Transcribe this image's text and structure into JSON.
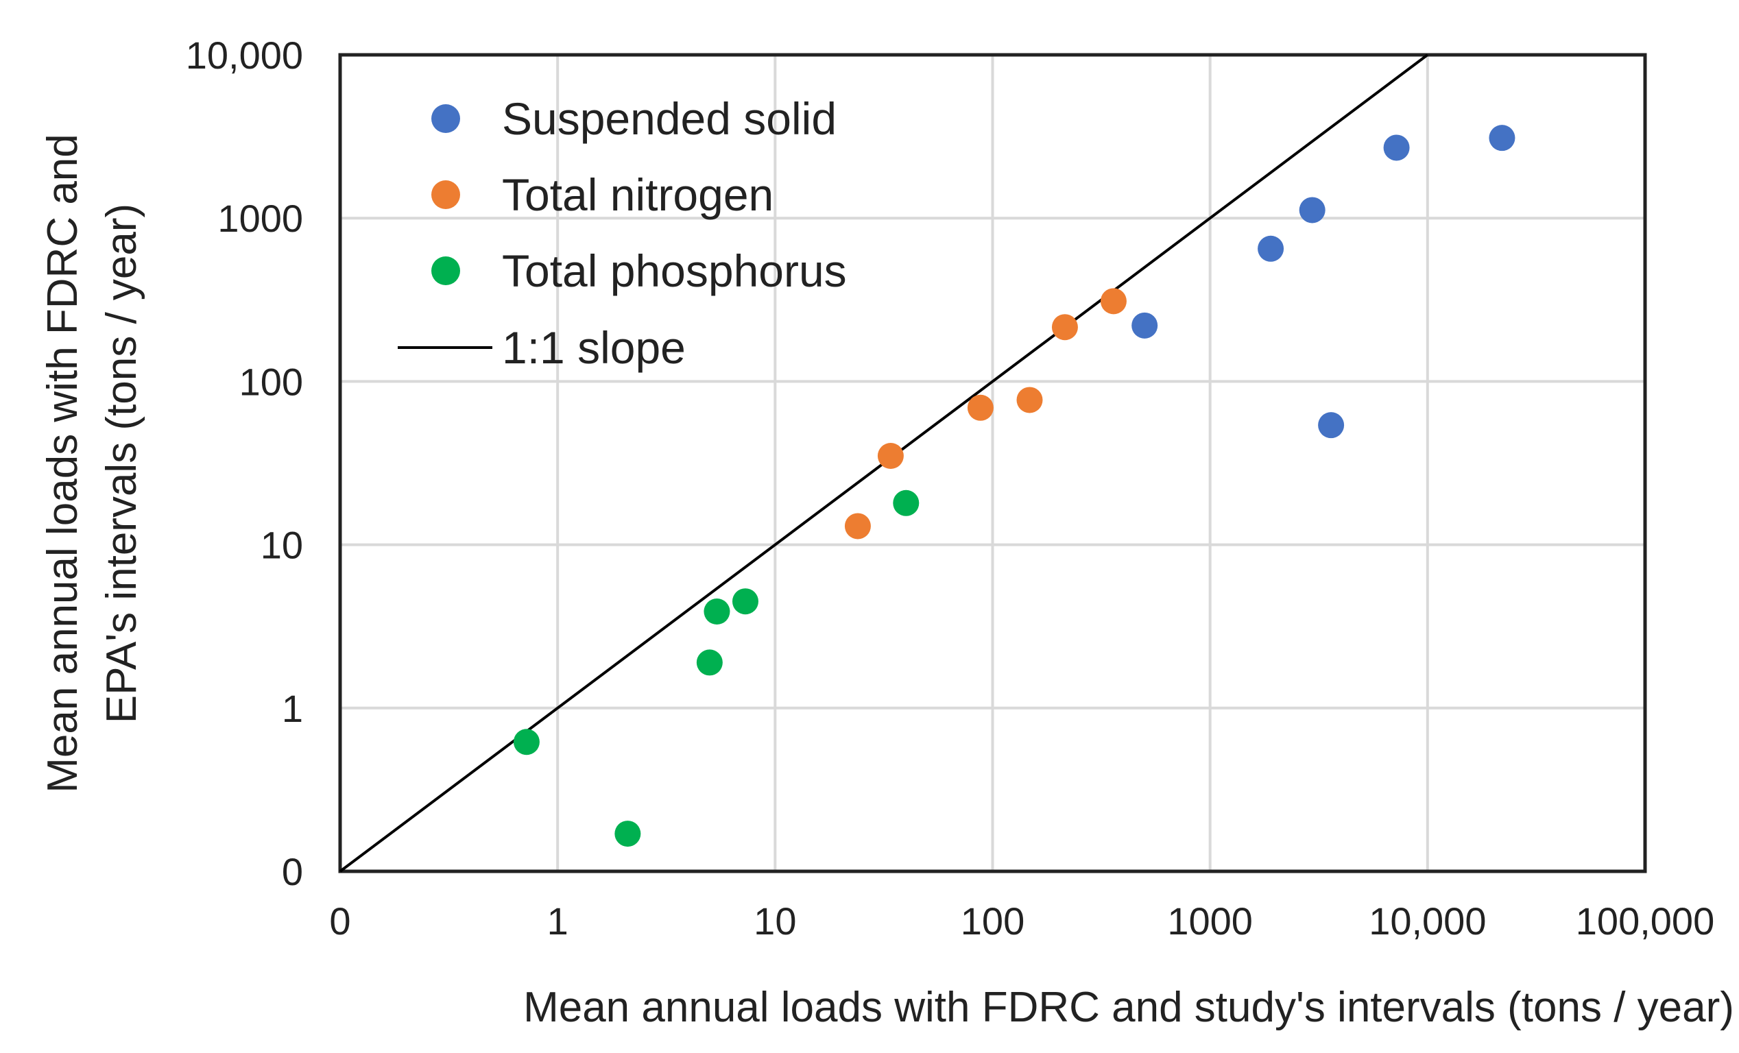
{
  "chart_data": {
    "type": "scatter",
    "title": "",
    "xlabel": "Mean annual loads with FDRC and study's intervals (tons / year)",
    "ylabel": "Mean annual loads with FDRC and EPA's intervals (tons / year)",
    "ylabel_lines": [
      "Mean annual loads with FDRC and",
      "EPA's intervals (tons / year)"
    ],
    "x_scale": "log",
    "y_scale": "log",
    "xlim": [
      0.1,
      100000
    ],
    "ylim": [
      0.1,
      10000
    ],
    "x_tick_values": [
      0.1,
      1,
      10,
      100,
      1000,
      10000,
      100000
    ],
    "x_tick_labels": [
      "0",
      "1",
      "10",
      "100",
      "1000",
      "10,000",
      "100,000"
    ],
    "y_tick_values": [
      0.1,
      1,
      10,
      100,
      1000,
      10000
    ],
    "y_tick_labels": [
      "0",
      "1",
      "10",
      "100",
      "1000",
      "10,000"
    ],
    "grid": true,
    "legend_position": "top-left",
    "series": [
      {
        "name": "Suspended solid",
        "color": "#4472C4",
        "points": [
          {
            "x": 500,
            "y": 220
          },
          {
            "x": 1900,
            "y": 650
          },
          {
            "x": 2950,
            "y": 1120
          },
          {
            "x": 3600,
            "y": 54
          },
          {
            "x": 7200,
            "y": 2700
          },
          {
            "x": 22000,
            "y": 3100
          }
        ]
      },
      {
        "name": "Total nitrogen",
        "color": "#ED7D31",
        "points": [
          {
            "x": 24,
            "y": 13
          },
          {
            "x": 34,
            "y": 35
          },
          {
            "x": 88,
            "y": 69
          },
          {
            "x": 148,
            "y": 77
          },
          {
            "x": 215,
            "y": 215
          },
          {
            "x": 360,
            "y": 310
          }
        ]
      },
      {
        "name": "Total phosphorus",
        "color": "#00B050",
        "points": [
          {
            "x": 0.72,
            "y": 0.62
          },
          {
            "x": 2.1,
            "y": 0.17
          },
          {
            "x": 5.0,
            "y": 1.9
          },
          {
            "x": 5.4,
            "y": 3.9
          },
          {
            "x": 7.3,
            "y": 4.5
          },
          {
            "x": 40,
            "y": 18
          }
        ]
      }
    ],
    "reference_line": {
      "name": "1:1 slope",
      "color": "#000000",
      "from": [
        0.1,
        0.1
      ],
      "to": [
        10000,
        10000
      ]
    }
  }
}
